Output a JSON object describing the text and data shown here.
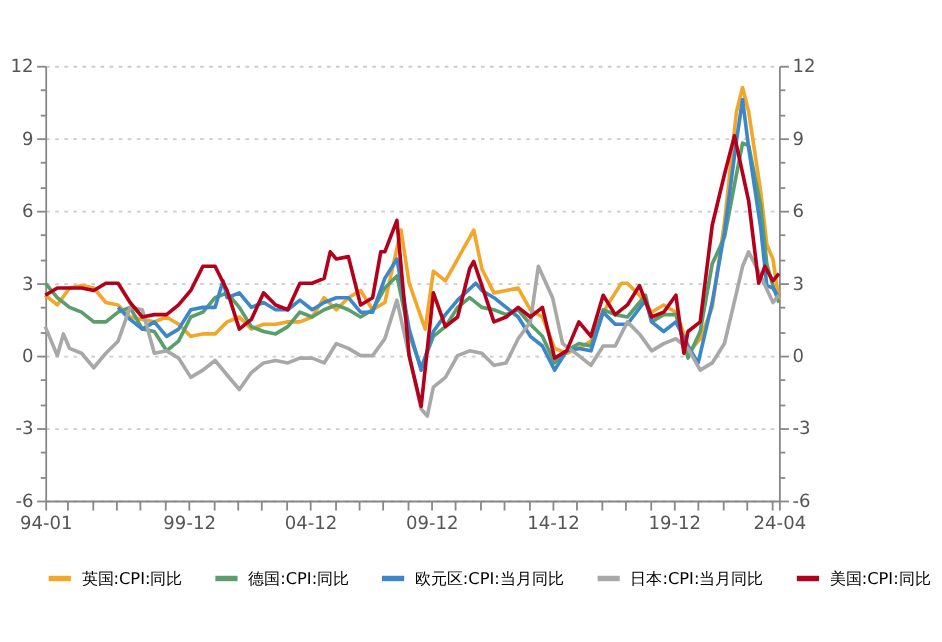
{
  "chart_data": {
    "type": "line",
    "xlim": [
      "1994-01",
      "2024-04"
    ],
    "xticks": [
      {
        "value": "1994-01",
        "label": "94-01"
      },
      {
        "value": "1994-12",
        "label": null
      },
      {
        "value": "1995-12",
        "label": null
      },
      {
        "value": "1996-12",
        "label": null
      },
      {
        "value": "1997-12",
        "label": null
      },
      {
        "value": "1998-12",
        "label": null
      },
      {
        "value": "1999-12",
        "label": "99-12"
      },
      {
        "value": "2000-12",
        "label": null
      },
      {
        "value": "2001-12",
        "label": null
      },
      {
        "value": "2002-12",
        "label": null
      },
      {
        "value": "2003-12",
        "label": null
      },
      {
        "value": "2004-12",
        "label": "04-12"
      },
      {
        "value": "2005-12",
        "label": null
      },
      {
        "value": "2006-12",
        "label": null
      },
      {
        "value": "2007-12",
        "label": null
      },
      {
        "value": "2008-12",
        "label": null
      },
      {
        "value": "2009-12",
        "label": "09-12"
      },
      {
        "value": "2010-12",
        "label": null
      },
      {
        "value": "2011-12",
        "label": null
      },
      {
        "value": "2012-12",
        "label": null
      },
      {
        "value": "2013-12",
        "label": null
      },
      {
        "value": "2014-12",
        "label": "14-12"
      },
      {
        "value": "2015-12",
        "label": null
      },
      {
        "value": "2016-12",
        "label": null
      },
      {
        "value": "2017-12",
        "label": null
      },
      {
        "value": "2018-12",
        "label": null
      },
      {
        "value": "2019-12",
        "label": "19-12"
      },
      {
        "value": "2020-12",
        "label": null
      },
      {
        "value": "2021-12",
        "label": null
      },
      {
        "value": "2022-12",
        "label": null
      },
      {
        "value": "2023-12",
        "label": null
      },
      {
        "value": "2024-04",
        "label": "24-04"
      }
    ],
    "ylim": [
      -6,
      12
    ],
    "yticks": [
      -6,
      {
        "value": -5,
        "label": null
      },
      {
        "value": -4,
        "label": null
      },
      -3,
      {
        "value": -2,
        "label": null
      },
      {
        "value": -1,
        "label": null
      },
      0,
      {
        "value": 1,
        "label": null
      },
      {
        "value": 2,
        "label": null
      },
      3,
      {
        "value": 4,
        "label": null
      },
      {
        "value": 5,
        "label": null
      },
      6,
      {
        "value": 7,
        "label": null
      },
      {
        "value": 8,
        "label": null
      },
      9,
      {
        "value": 10,
        "label": null
      },
      {
        "value": 11,
        "label": null
      },
      12
    ],
    "y2lim": [
      -6,
      12
    ],
    "y2ticks": [
      -6,
      {
        "value": -5,
        "label": null
      },
      {
        "value": -4,
        "label": null
      },
      -3,
      {
        "value": -2,
        "label": null
      },
      {
        "value": -1,
        "label": null
      },
      0,
      {
        "value": 1,
        "label": null
      },
      {
        "value": 2,
        "label": null
      },
      3,
      {
        "value": 4,
        "label": null
      },
      {
        "value": 5,
        "label": null
      },
      6,
      {
        "value": 7,
        "label": null
      },
      {
        "value": 8,
        "label": null
      },
      9,
      {
        "value": 10,
        "label": null
      },
      {
        "value": 11,
        "label": null
      },
      12
    ],
    "grid": "y",
    "legend": "bottom",
    "marker": "none",
    "line_style": "solid",
    "series": [
      {
        "name": "英国:CPI:同比",
        "color": "#f2a72a",
        "x": [
          "1994-01",
          "1994-07",
          "1995-01",
          "1995-07",
          "1996-01",
          "1996-07",
          "1997-01",
          "1997-07",
          "1998-01",
          "1998-07",
          "1999-01",
          "1999-07",
          "2000-01",
          "2000-07",
          "2001-01",
          "2001-07",
          "2002-01",
          "2002-07",
          "2003-01",
          "2003-07",
          "2004-01",
          "2004-07",
          "2005-01",
          "2005-07",
          "2006-01",
          "2006-07",
          "2007-01",
          "2007-07",
          "2008-01",
          "2008-09",
          "2009-01",
          "2009-09",
          "2010-01",
          "2010-07",
          "2011-01",
          "2011-09",
          "2012-01",
          "2012-07",
          "2013-01",
          "2013-07",
          "2014-01",
          "2014-07",
          "2015-01",
          "2015-07",
          "2016-01",
          "2016-07",
          "2017-01",
          "2017-07",
          "2017-10",
          "2018-01",
          "2018-07",
          "2019-01",
          "2019-07",
          "2020-01",
          "2020-08",
          "2021-01",
          "2021-07",
          "2022-01",
          "2022-07",
          "2022-10",
          "2023-01",
          "2023-07",
          "2023-10",
          "2024-01",
          "2024-04"
        ],
        "values": [
          2.5,
          2.1,
          2.8,
          2.9,
          2.8,
          2.2,
          2.1,
          1.6,
          1.5,
          1.4,
          1.6,
          1.3,
          0.8,
          0.9,
          0.9,
          1.4,
          1.6,
          1.1,
          1.3,
          1.3,
          1.4,
          1.4,
          1.6,
          2.4,
          1.9,
          2.4,
          2.7,
          1.9,
          2.2,
          5.2,
          3.0,
          1.1,
          3.5,
          3.1,
          4.0,
          5.2,
          3.6,
          2.6,
          2.7,
          2.8,
          1.9,
          1.6,
          0.3,
          0.1,
          0.3,
          0.6,
          1.8,
          2.6,
          3.0,
          3.0,
          2.5,
          1.8,
          2.1,
          1.8,
          0.2,
          0.7,
          2.0,
          5.5,
          10.1,
          11.1,
          10.1,
          6.8,
          4.6,
          4.0,
          2.3
        ]
      },
      {
        "name": "德国:CPI:同比",
        "color": "#5a9e6b",
        "x": [
          "1994-01",
          "1994-07",
          "1995-01",
          "1995-07",
          "1996-01",
          "1996-07",
          "1997-01",
          "1997-07",
          "1998-01",
          "1998-07",
          "1999-01",
          "1999-07",
          "2000-01",
          "2000-07",
          "2001-01",
          "2001-07",
          "2002-01",
          "2002-07",
          "2003-01",
          "2003-07",
          "2004-01",
          "2004-07",
          "2005-01",
          "2005-07",
          "2006-01",
          "2006-07",
          "2007-01",
          "2007-07",
          "2008-01",
          "2008-07",
          "2009-01",
          "2009-07",
          "2010-01",
          "2010-07",
          "2011-01",
          "2011-07",
          "2012-01",
          "2012-07",
          "2013-01",
          "2013-07",
          "2014-01",
          "2014-07",
          "2015-01",
          "2015-07",
          "2016-01",
          "2016-07",
          "2017-01",
          "2017-07",
          "2018-01",
          "2018-10",
          "2019-01",
          "2019-07",
          "2020-01",
          "2020-07",
          "2021-01",
          "2021-07",
          "2022-01",
          "2022-07",
          "2022-10",
          "2023-01",
          "2023-07",
          "2023-10",
          "2024-01",
          "2024-04"
        ],
        "values": [
          3.0,
          2.4,
          2.0,
          1.8,
          1.4,
          1.4,
          1.8,
          2.0,
          1.1,
          1.0,
          0.2,
          0.6,
          1.6,
          1.8,
          2.4,
          2.6,
          2.0,
          1.2,
          1.0,
          0.9,
          1.2,
          1.8,
          1.6,
          1.9,
          2.1,
          1.9,
          1.6,
          1.9,
          2.8,
          3.3,
          0.9,
          -0.5,
          0.8,
          1.2,
          2.0,
          2.4,
          2.0,
          1.9,
          1.7,
          1.9,
          1.3,
          0.8,
          -0.3,
          0.2,
          0.5,
          0.4,
          1.9,
          1.7,
          1.6,
          2.5,
          1.4,
          1.7,
          1.7,
          -0.1,
          1.0,
          3.8,
          4.9,
          7.5,
          8.8,
          8.7,
          6.2,
          3.8,
          2.9,
          2.2
        ]
      },
      {
        "name": "欧元区:CPI:当月同比",
        "color": "#3d87c9",
        "x": [
          "1997-01",
          "1997-07",
          "1998-01",
          "1998-07",
          "1999-01",
          "1999-07",
          "2000-01",
          "2000-07",
          "2001-01",
          "2001-05",
          "2001-07",
          "2002-01",
          "2002-07",
          "2003-01",
          "2003-07",
          "2004-01",
          "2004-07",
          "2005-01",
          "2005-07",
          "2006-01",
          "2006-07",
          "2007-01",
          "2007-07",
          "2008-01",
          "2008-07",
          "2009-01",
          "2009-07",
          "2010-01",
          "2010-07",
          "2011-01",
          "2011-10",
          "2012-01",
          "2012-07",
          "2013-01",
          "2013-07",
          "2014-01",
          "2014-07",
          "2015-01",
          "2015-07",
          "2016-01",
          "2016-07",
          "2017-01",
          "2017-07",
          "2018-01",
          "2018-10",
          "2019-01",
          "2019-07",
          "2020-01",
          "2020-07",
          "2020-12",
          "2021-07",
          "2022-01",
          "2022-07",
          "2022-10",
          "2023-01",
          "2023-07",
          "2023-10",
          "2024-01",
          "2024-04"
        ],
        "values": [
          2.0,
          1.5,
          1.1,
          1.4,
          0.8,
          1.1,
          1.9,
          2.0,
          2.0,
          3.1,
          2.4,
          2.6,
          2.0,
          2.2,
          1.9,
          1.9,
          2.3,
          1.9,
          2.2,
          2.4,
          2.4,
          1.8,
          1.8,
          3.2,
          4.0,
          1.1,
          -0.6,
          1.0,
          1.7,
          2.3,
          3.0,
          2.7,
          2.4,
          2.0,
          1.6,
          0.8,
          0.4,
          -0.6,
          0.2,
          0.3,
          0.2,
          1.8,
          1.3,
          1.3,
          2.3,
          1.4,
          1.0,
          1.4,
          0.4,
          -0.3,
          2.2,
          5.1,
          8.9,
          10.6,
          8.6,
          5.3,
          2.9,
          2.8,
          2.4
        ]
      },
      {
        "name": "日本:CPI:当月同比",
        "color": "#a8a8a8",
        "x": [
          "1994-01",
          "1994-07",
          "1994-10",
          "1995-01",
          "1995-07",
          "1996-01",
          "1996-07",
          "1997-01",
          "1997-07",
          "1998-01",
          "1998-07",
          "1999-01",
          "1999-07",
          "2000-01",
          "2000-07",
          "2001-01",
          "2001-07",
          "2002-01",
          "2002-07",
          "2003-01",
          "2003-07",
          "2004-01",
          "2004-07",
          "2005-01",
          "2005-07",
          "2006-01",
          "2006-07",
          "2007-01",
          "2007-07",
          "2008-01",
          "2008-07",
          "2009-01",
          "2009-07",
          "2009-10",
          "2010-01",
          "2010-07",
          "2011-01",
          "2011-07",
          "2012-01",
          "2012-07",
          "2013-01",
          "2013-07",
          "2014-01",
          "2014-05",
          "2014-12",
          "2015-05",
          "2016-01",
          "2016-07",
          "2017-01",
          "2017-07",
          "2018-01",
          "2018-07",
          "2019-01",
          "2019-07",
          "2020-01",
          "2020-07",
          "2021-01",
          "2021-07",
          "2022-01",
          "2022-07",
          "2022-10",
          "2023-01",
          "2023-07",
          "2024-01",
          "2024-04"
        ],
        "values": [
          1.2,
          0.0,
          0.9,
          0.3,
          0.1,
          -0.5,
          0.1,
          0.6,
          2.0,
          1.9,
          0.1,
          0.2,
          -0.1,
          -0.9,
          -0.6,
          -0.2,
          -0.8,
          -1.4,
          -0.7,
          -0.3,
          -0.2,
          -0.3,
          -0.1,
          -0.1,
          -0.3,
          0.5,
          0.3,
          0.0,
          0.0,
          0.7,
          2.3,
          0.0,
          -2.2,
          -2.5,
          -1.3,
          -0.9,
          0.0,
          0.2,
          0.1,
          -0.4,
          -0.3,
          0.7,
          1.4,
          3.7,
          2.4,
          0.5,
          0.0,
          -0.4,
          0.4,
          0.4,
          1.4,
          0.9,
          0.2,
          0.5,
          0.7,
          0.3,
          -0.6,
          -0.3,
          0.5,
          2.6,
          3.7,
          4.3,
          3.3,
          2.2,
          2.5
        ]
      },
      {
        "name": "美国:CPI:同比",
        "color": "#b3001b",
        "x": [
          "1994-01",
          "1994-07",
          "1995-01",
          "1995-07",
          "1996-01",
          "1996-07",
          "1997-01",
          "1997-07",
          "1998-01",
          "1998-07",
          "1999-01",
          "1999-07",
          "2000-01",
          "2000-07",
          "2001-01",
          "2001-07",
          "2002-01",
          "2002-07",
          "2003-01",
          "2003-07",
          "2004-01",
          "2004-07",
          "2005-01",
          "2005-07",
          "2005-10",
          "2006-01",
          "2006-07",
          "2007-01",
          "2007-07",
          "2007-11",
          "2008-01",
          "2008-07",
          "2009-01",
          "2009-07",
          "2010-01",
          "2010-07",
          "2011-01",
          "2011-07",
          "2011-09",
          "2012-01",
          "2012-07",
          "2013-01",
          "2013-07",
          "2014-01",
          "2014-07",
          "2015-01",
          "2015-07",
          "2016-01",
          "2016-07",
          "2017-01",
          "2017-07",
          "2018-01",
          "2018-07",
          "2019-01",
          "2019-07",
          "2020-01",
          "2020-05",
          "2020-07",
          "2021-01",
          "2021-07",
          "2022-01",
          "2022-06",
          "2023-01",
          "2023-06",
          "2023-09",
          "2024-01",
          "2024-04"
        ],
        "values": [
          2.5,
          2.8,
          2.8,
          2.8,
          2.7,
          3.0,
          3.0,
          2.2,
          1.6,
          1.7,
          1.7,
          2.1,
          2.7,
          3.7,
          3.7,
          2.7,
          1.1,
          1.5,
          2.6,
          2.1,
          1.9,
          3.0,
          3.0,
          3.2,
          4.3,
          4.0,
          4.1,
          2.1,
          2.4,
          4.3,
          4.3,
          5.6,
          0.0,
          -2.1,
          2.6,
          1.2,
          1.6,
          3.6,
          3.9,
          2.9,
          1.4,
          1.6,
          2.0,
          1.6,
          2.0,
          -0.1,
          0.2,
          1.4,
          0.8,
          2.5,
          1.7,
          2.1,
          2.9,
          1.6,
          1.8,
          2.5,
          0.1,
          1.0,
          1.4,
          5.4,
          7.5,
          9.1,
          6.4,
          3.0,
          3.7,
          3.1,
          3.4
        ]
      }
    ]
  }
}
